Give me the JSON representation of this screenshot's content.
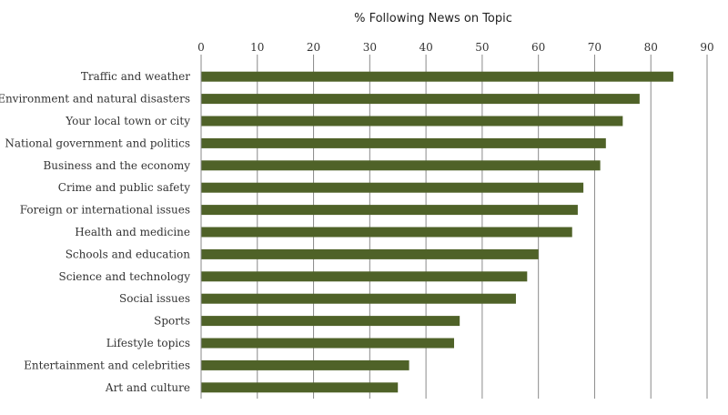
{
  "chart_data": {
    "type": "bar",
    "orientation": "horizontal",
    "title": "% Following News on Topic",
    "xlabel": "",
    "ylabel": "",
    "xlim": [
      0,
      90
    ],
    "ticks": [
      0,
      10,
      20,
      30,
      40,
      50,
      60,
      70,
      80,
      90
    ],
    "grid": true,
    "bar_color": "#4f6228",
    "categories": [
      "Traffic and weather",
      "Environment and natural disasters",
      "Your local town or city",
      "National government and politics",
      "Business and the economy",
      "Crime and public safety",
      "Foreign or international issues",
      "Health and medicine",
      "Schools and education",
      "Science and technology",
      "Social issues",
      "Sports",
      "Lifestyle topics",
      "Entertainment and celebrities",
      "Art and culture"
    ],
    "values": [
      84,
      78,
      75,
      72,
      71,
      68,
      67,
      66,
      60,
      58,
      56,
      46,
      45,
      37,
      35
    ]
  }
}
